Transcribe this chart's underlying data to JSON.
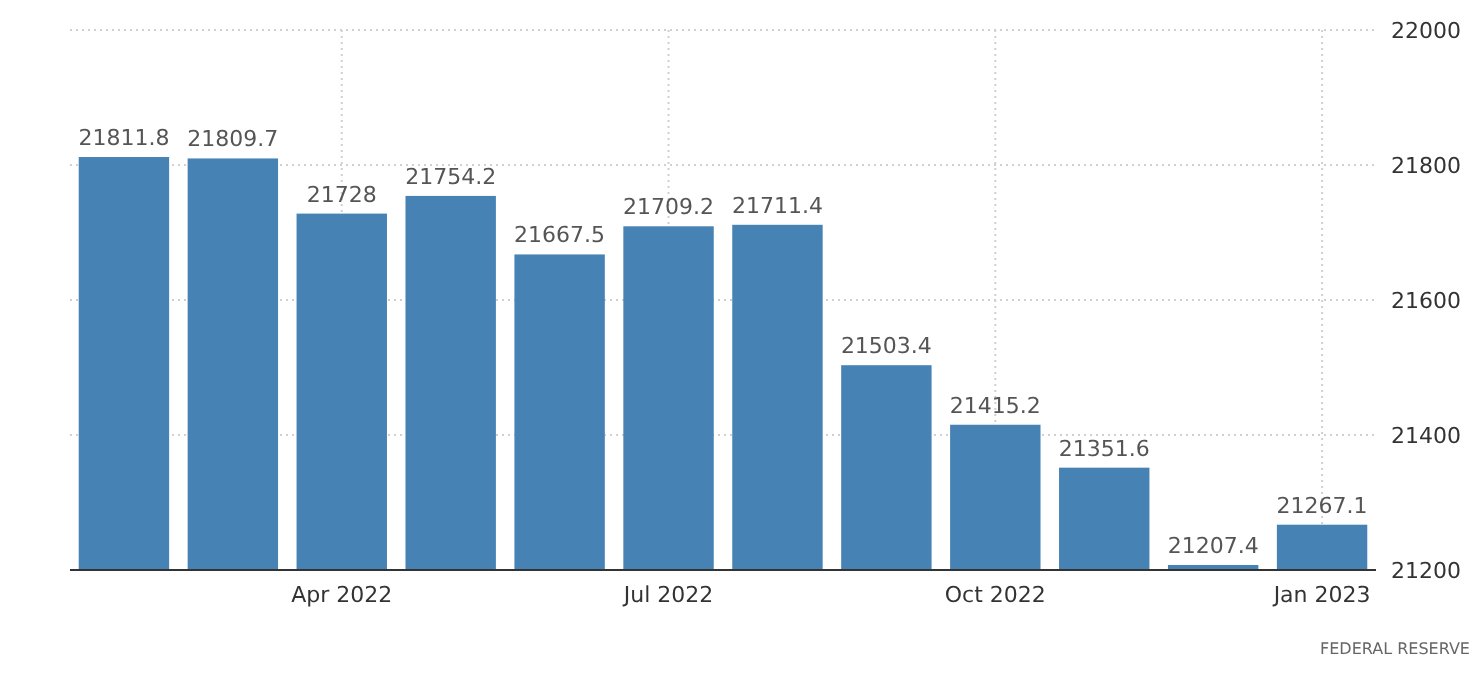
{
  "chart_data": {
    "type": "bar",
    "categories": [
      null,
      null,
      "Apr 2022",
      null,
      null,
      "Jul 2022",
      null,
      null,
      "Oct 2022",
      null,
      null,
      "Jan 2023"
    ],
    "values": [
      21811.8,
      21809.7,
      21728,
      21754.2,
      21667.5,
      21709.2,
      21711.4,
      21503.4,
      21415.2,
      21351.6,
      21207.4,
      21267.1
    ],
    "color": "#4682b4",
    "ylim": [
      21200,
      22000
    ],
    "yticks": [
      21200,
      21400,
      21600,
      21800,
      22000
    ],
    "grid": true,
    "data_labels": true,
    "annotations": [
      "FEDERAL RESERVE"
    ]
  }
}
